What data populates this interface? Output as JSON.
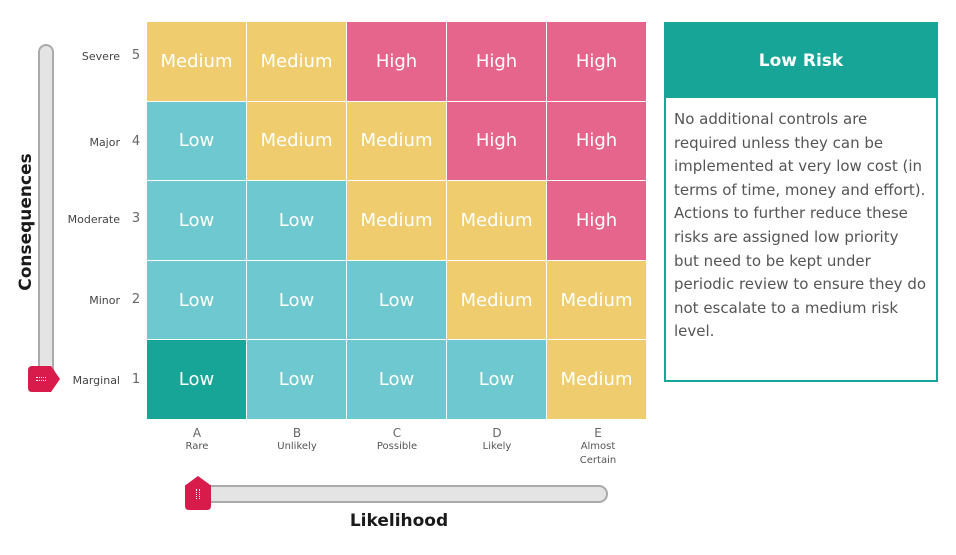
{
  "axes": {
    "y_title": "Consequences",
    "x_title": "Likelihood"
  },
  "rows": [
    {
      "label": "Severe",
      "num": "5",
      "cells": [
        "Medium",
        "Medium",
        "High",
        "High",
        "High"
      ]
    },
    {
      "label": "Major",
      "num": "4",
      "cells": [
        "Low",
        "Medium",
        "Medium",
        "High",
        "High"
      ]
    },
    {
      "label": "Moderate",
      "num": "3",
      "cells": [
        "Low",
        "Low",
        "Medium",
        "Medium",
        "High"
      ]
    },
    {
      "label": "Minor",
      "num": "2",
      "cells": [
        "Low",
        "Low",
        "Low",
        "Medium",
        "Medium"
      ]
    },
    {
      "label": "Marginal",
      "num": "1",
      "cells": [
        "Low",
        "Low",
        "Low",
        "Low",
        "Medium"
      ]
    }
  ],
  "columns": [
    {
      "letter": "A",
      "label": "Rare"
    },
    {
      "letter": "B",
      "label": "Unlikely"
    },
    {
      "letter": "C",
      "label": "Possible"
    },
    {
      "letter": "D",
      "label": "Likely"
    },
    {
      "letter": "E",
      "label": "Almost Certain"
    }
  ],
  "selection": {
    "consequence": "Marginal",
    "likelihood": "Rare"
  },
  "panel": {
    "title": "Low Risk",
    "description": "No additional controls are required unless they can be implemented at very low cost (in terms of time, money and effort). Actions to further reduce these risks are assigned low priority but need to be kept under periodic review to ensure they do not escalate to a medium risk level."
  },
  "colors": {
    "low": "#6ec8cf",
    "medium": "#efcd6e",
    "high": "#e5658d",
    "selected": "#17a597",
    "thumb": "#d81b4b"
  }
}
